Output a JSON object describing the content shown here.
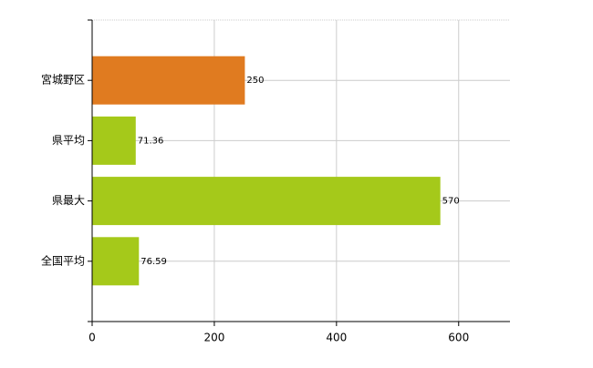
{
  "chart_data": {
    "type": "hbar",
    "categories": [
      "宮城野区",
      "県平均",
      "県最大",
      "全国平均"
    ],
    "values": [
      250,
      71.36,
      570,
      76.59
    ],
    "colors": [
      "#e07b20",
      "#a5c91a",
      "#a5c91a",
      "#a5c91a"
    ],
    "xlim": [
      0,
      684
    ],
    "xticks": [
      0,
      200,
      400,
      600
    ],
    "grid": true
  }
}
